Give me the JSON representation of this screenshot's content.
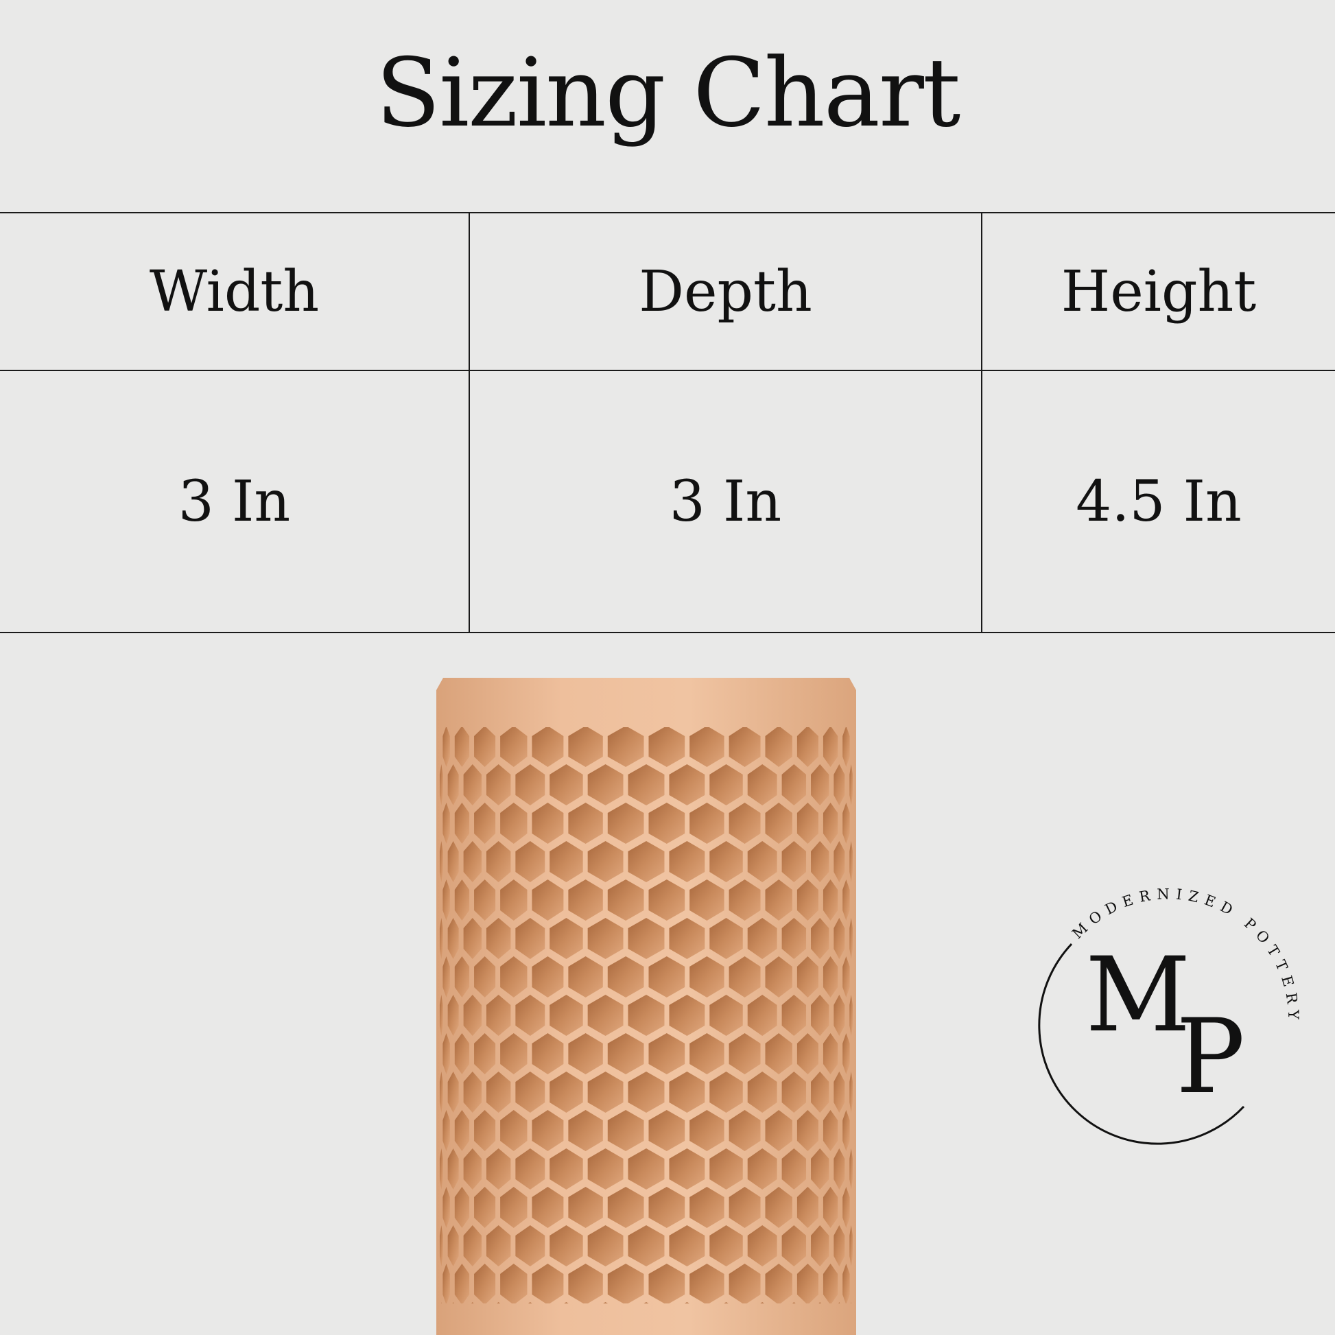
{
  "title": "Sizing Chart",
  "table": {
    "headers": [
      "Width",
      "Depth",
      "Height"
    ],
    "values": [
      "3 In",
      "3 In",
      "4.5 In"
    ]
  },
  "logo": {
    "monogram": "MP",
    "ring_text": "MODERNIZED POTTERY"
  },
  "colors": {
    "background": "#e9e9e8",
    "vase": "#e8b995",
    "vase_shadow": "#b8784a",
    "ink": "#111111"
  }
}
